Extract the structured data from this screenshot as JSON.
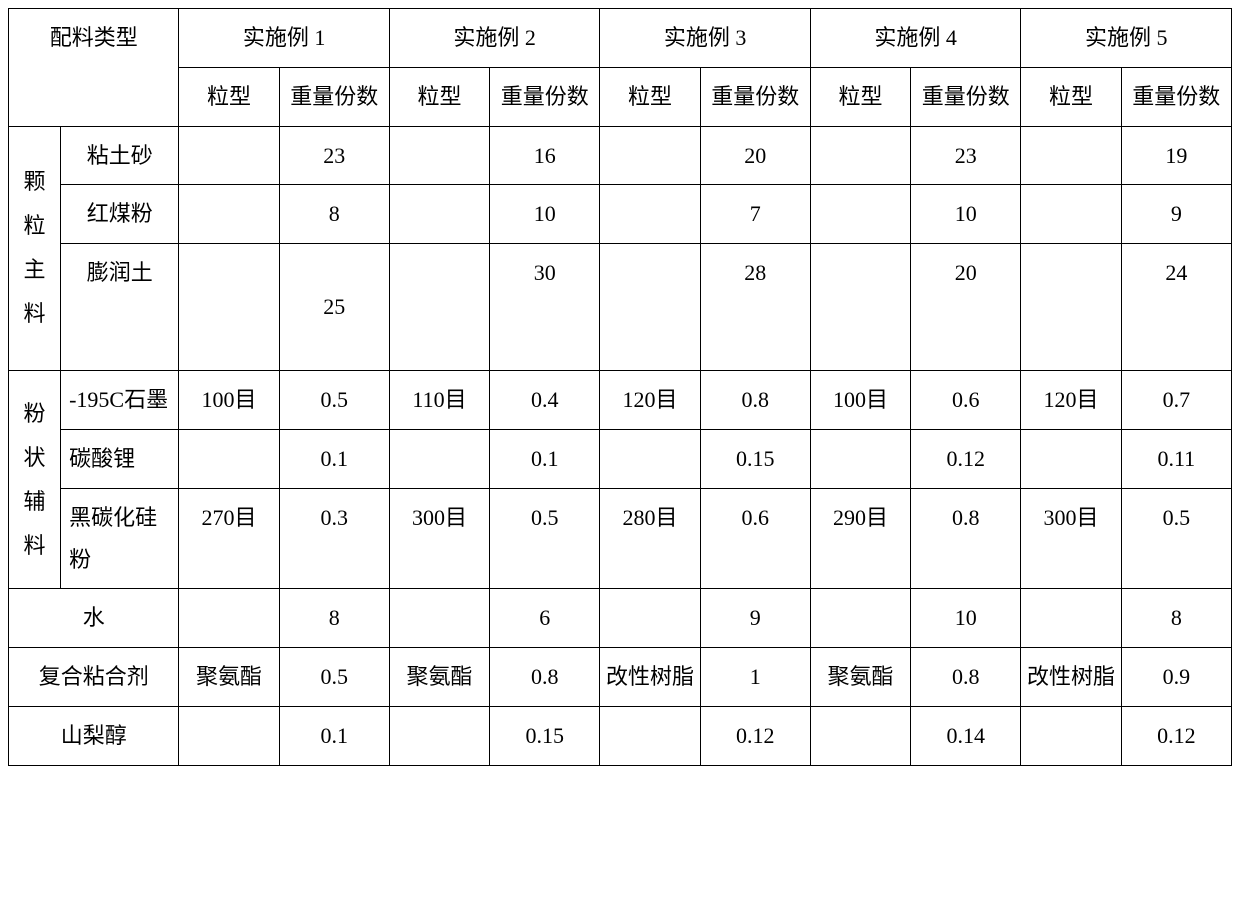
{
  "colors": {
    "border": "#000000",
    "text": "#000000",
    "background": "#ffffff"
  },
  "typography": {
    "font_family": "SimSun",
    "font_size_pt": 16,
    "line_height": 1.9
  },
  "header": {
    "ingredient_type": "配料类型",
    "examples": [
      "实施例 1",
      "实施例 2",
      "实施例 3",
      "实施例 4",
      "实施例 5"
    ],
    "sub": {
      "lx": "粒型",
      "wt": "重量份数"
    }
  },
  "groups": {
    "granular_main": "颗粒主料",
    "powder_aux": "粉状辅料"
  },
  "rows": {
    "clay_sand": {
      "label": "粘土砂",
      "e1": {
        "lx": "",
        "wt": "23"
      },
      "e2": {
        "lx": "",
        "wt": "16"
      },
      "e3": {
        "lx": "",
        "wt": "20"
      },
      "e4": {
        "lx": "",
        "wt": "23"
      },
      "e5": {
        "lx": "",
        "wt": "19"
      }
    },
    "red_coal": {
      "label": "红煤粉",
      "e1": {
        "lx": "",
        "wt": "8"
      },
      "e2": {
        "lx": "",
        "wt": "10"
      },
      "e3": {
        "lx": "",
        "wt": "7"
      },
      "e4": {
        "lx": "",
        "wt": "10"
      },
      "e5": {
        "lx": "",
        "wt": "9"
      }
    },
    "bentonite": {
      "label": "膨润土",
      "e1": {
        "lx": "",
        "wt": "25"
      },
      "e2": {
        "lx": "",
        "wt": "30"
      },
      "e3": {
        "lx": "",
        "wt": "28"
      },
      "e4": {
        "lx": "",
        "wt": "20"
      },
      "e5": {
        "lx": "",
        "wt": "24"
      }
    },
    "graphite": {
      "label": "-195C石墨",
      "e1": {
        "lx": "100目",
        "wt": "0.5"
      },
      "e2": {
        "lx": "110目",
        "wt": "0.4"
      },
      "e3": {
        "lx": "120目",
        "wt": "0.8"
      },
      "e4": {
        "lx": "100目",
        "wt": "0.6"
      },
      "e5": {
        "lx": "120目",
        "wt": "0.7"
      }
    },
    "li_carbonate": {
      "label": "碳酸锂",
      "e1": {
        "lx": "",
        "wt": "0.1"
      },
      "e2": {
        "lx": "",
        "wt": "0.1"
      },
      "e3": {
        "lx": "",
        "wt": "0.15"
      },
      "e4": {
        "lx": "",
        "wt": "0.12"
      },
      "e5": {
        "lx": "",
        "wt": "0.11"
      }
    },
    "black_sic": {
      "label": "黑碳化硅粉",
      "e1": {
        "lx": "270目",
        "wt": "0.3"
      },
      "e2": {
        "lx": "300目",
        "wt": "0.5"
      },
      "e3": {
        "lx": "280目",
        "wt": "0.6"
      },
      "e4": {
        "lx": "290目",
        "wt": "0.8"
      },
      "e5": {
        "lx": "300目",
        "wt": "0.5"
      }
    },
    "water": {
      "label": "水",
      "e1": {
        "lx": "",
        "wt": "8"
      },
      "e2": {
        "lx": "",
        "wt": "6"
      },
      "e3": {
        "lx": "",
        "wt": "9"
      },
      "e4": {
        "lx": "",
        "wt": "10"
      },
      "e5": {
        "lx": "",
        "wt": "8"
      }
    },
    "binder": {
      "label": "复合粘合剂",
      "e1": {
        "lx": "聚氨酯",
        "wt": "0.5"
      },
      "e2": {
        "lx": "聚氨酯",
        "wt": "0.8"
      },
      "e3": {
        "lx": "改性树脂",
        "wt": "1"
      },
      "e4": {
        "lx": "聚氨酯",
        "wt": "0.8"
      },
      "e5": {
        "lx": "改性树脂",
        "wt": "0.9"
      }
    },
    "sorbitol": {
      "label": "山梨醇",
      "e1": {
        "lx": "",
        "wt": "0.1"
      },
      "e2": {
        "lx": "",
        "wt": "0.15"
      },
      "e3": {
        "lx": "",
        "wt": "0.12"
      },
      "e4": {
        "lx": "",
        "wt": "0.14"
      },
      "e5": {
        "lx": "",
        "wt": "0.12"
      }
    }
  }
}
